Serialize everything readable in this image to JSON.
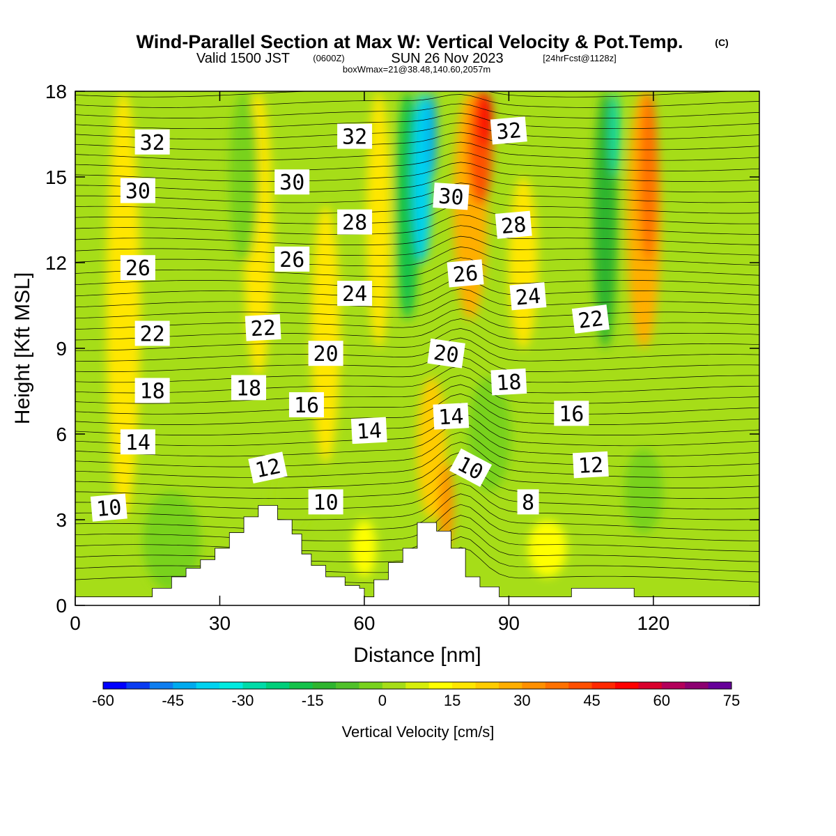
{
  "title": {
    "main": "Wind-Parallel Section at Max W: Vertical Velocity & Pot.Temp.",
    "copyright": "(C)",
    "valid_prefix": "Valid 1500 JST",
    "valid_zulu": "(0600Z)",
    "valid_date": "SUN 26 Nov 2023",
    "forecast": "[24hrFcst@1128z]",
    "box_info": "boxWmax=21@38.48,140.60,2057m"
  },
  "chart_data": {
    "type": "heatmap",
    "title": "Wind-Parallel Section at Max W: Vertical Velocity & Pot.Temp.",
    "xlabel": "Distance [nm]",
    "ylabel": "Height [Kft MSL]",
    "xlim": [
      0,
      142
    ],
    "ylim": [
      0,
      18
    ],
    "x_ticks": [
      0,
      30,
      60,
      90,
      120
    ],
    "y_ticks": [
      0,
      3,
      6,
      9,
      12,
      15,
      18
    ],
    "colorbar": {
      "label": "Vertical Velocity [cm/s]",
      "range": [
        -60,
        75
      ],
      "step": 5,
      "tick_values": [
        -60,
        -45,
        -30,
        -15,
        0,
        15,
        30,
        45,
        60,
        75
      ],
      "colors": [
        "#0000ff",
        "#0a3cf2",
        "#0f7ef0",
        "#00aaee",
        "#00d2f0",
        "#00eae0",
        "#00dba8",
        "#00cf7a",
        "#14c24a",
        "#2fb52f",
        "#50c12a",
        "#78d21d",
        "#a6dd18",
        "#d6ee0a",
        "#ffff00",
        "#ffe600",
        "#ffcc00",
        "#ffae00",
        "#ff9000",
        "#ff7100",
        "#ff4f00",
        "#ff2800",
        "#ff0000",
        "#d9002c",
        "#b3005a",
        "#8c0070",
        "#660099"
      ]
    },
    "contours": {
      "field": "potential temperature",
      "labels": [
        {
          "text": "32",
          "x": 16,
          "y": 16.2,
          "angle": 0
        },
        {
          "text": "32",
          "x": 58,
          "y": 16.4,
          "angle": 0
        },
        {
          "text": "32",
          "x": 90,
          "y": 16.6,
          "angle": -5
        },
        {
          "text": "30",
          "x": 13,
          "y": 14.5,
          "angle": 0
        },
        {
          "text": "30",
          "x": 45,
          "y": 14.8,
          "angle": 0
        },
        {
          "text": "30",
          "x": 78,
          "y": 14.3,
          "angle": 4
        },
        {
          "text": "28",
          "x": 58,
          "y": 13.4,
          "angle": 0
        },
        {
          "text": "28",
          "x": 91,
          "y": 13.3,
          "angle": -5
        },
        {
          "text": "26",
          "x": 13,
          "y": 11.8,
          "angle": 0
        },
        {
          "text": "26",
          "x": 45,
          "y": 12.1,
          "angle": 0
        },
        {
          "text": "26",
          "x": 81,
          "y": 11.6,
          "angle": -5
        },
        {
          "text": "24",
          "x": 58,
          "y": 10.9,
          "angle": 0
        },
        {
          "text": "24",
          "x": 94,
          "y": 10.8,
          "angle": -5
        },
        {
          "text": "22",
          "x": 16,
          "y": 9.5,
          "angle": 0
        },
        {
          "text": "22",
          "x": 39,
          "y": 9.7,
          "angle": -3
        },
        {
          "text": "22",
          "x": 107,
          "y": 10.0,
          "angle": -7
        },
        {
          "text": "20",
          "x": 52,
          "y": 8.8,
          "angle": 0
        },
        {
          "text": "20",
          "x": 77,
          "y": 8.8,
          "angle": 8
        },
        {
          "text": "18",
          "x": 16,
          "y": 7.5,
          "angle": 0
        },
        {
          "text": "18",
          "x": 36,
          "y": 7.6,
          "angle": 0
        },
        {
          "text": "18",
          "x": 90,
          "y": 7.8,
          "angle": -3
        },
        {
          "text": "16",
          "x": 48,
          "y": 7.0,
          "angle": 0
        },
        {
          "text": "16",
          "x": 103,
          "y": 6.7,
          "angle": 0
        },
        {
          "text": "14",
          "x": 13,
          "y": 5.7,
          "angle": 0
        },
        {
          "text": "14",
          "x": 61,
          "y": 6.1,
          "angle": -3
        },
        {
          "text": "14",
          "x": 78,
          "y": 6.6,
          "angle": -3
        },
        {
          "text": "12",
          "x": 40,
          "y": 4.8,
          "angle": -12
        },
        {
          "text": "12",
          "x": 107,
          "y": 4.9,
          "angle": -3
        },
        {
          "text": "10",
          "x": 7,
          "y": 3.4,
          "angle": -5
        },
        {
          "text": "10",
          "x": 52,
          "y": 3.6,
          "angle": 0
        },
        {
          "text": "10",
          "x": 82,
          "y": 4.8,
          "angle": 28
        },
        {
          "text": "8",
          "x": 94,
          "y": 3.6,
          "angle": 0
        }
      ]
    },
    "terrain_profile": [
      [
        0,
        0.3
      ],
      [
        16,
        0.3
      ],
      [
        16,
        0.6
      ],
      [
        20,
        0.6
      ],
      [
        20,
        1.0
      ],
      [
        23,
        1.0
      ],
      [
        23,
        1.3
      ],
      [
        26,
        1.3
      ],
      [
        26,
        1.6
      ],
      [
        29,
        1.6
      ],
      [
        29,
        2.0
      ],
      [
        32,
        2.0
      ],
      [
        32,
        2.55
      ],
      [
        35,
        2.55
      ],
      [
        35,
        3.1
      ],
      [
        38,
        3.1
      ],
      [
        38,
        3.5
      ],
      [
        42,
        3.5
      ],
      [
        42,
        3.0
      ],
      [
        45,
        3.0
      ],
      [
        45,
        2.5
      ],
      [
        47,
        2.5
      ],
      [
        47,
        1.8
      ],
      [
        49,
        1.8
      ],
      [
        49,
        1.4
      ],
      [
        52,
        1.4
      ],
      [
        52,
        1.0
      ],
      [
        56,
        1.0
      ],
      [
        56,
        0.7
      ],
      [
        59,
        0.7
      ],
      [
        59,
        0.6
      ],
      [
        60,
        0.6
      ],
      [
        60,
        0.3
      ],
      [
        62,
        0.3
      ],
      [
        62,
        0.9
      ],
      [
        65,
        0.9
      ],
      [
        65,
        1.5
      ],
      [
        68,
        1.5
      ],
      [
        68,
        2.0
      ],
      [
        71,
        2.0
      ],
      [
        71,
        2.9
      ],
      [
        75,
        2.9
      ],
      [
        75,
        2.6
      ],
      [
        78,
        2.6
      ],
      [
        78,
        2.0
      ],
      [
        81,
        2.0
      ],
      [
        81,
        1.0
      ],
      [
        84,
        1.0
      ],
      [
        84,
        0.65
      ],
      [
        88,
        0.65
      ],
      [
        88,
        0.3
      ],
      [
        103,
        0.3
      ],
      [
        103,
        0.6
      ],
      [
        116,
        0.6
      ],
      [
        116,
        0.3
      ],
      [
        142,
        0.3
      ]
    ]
  }
}
